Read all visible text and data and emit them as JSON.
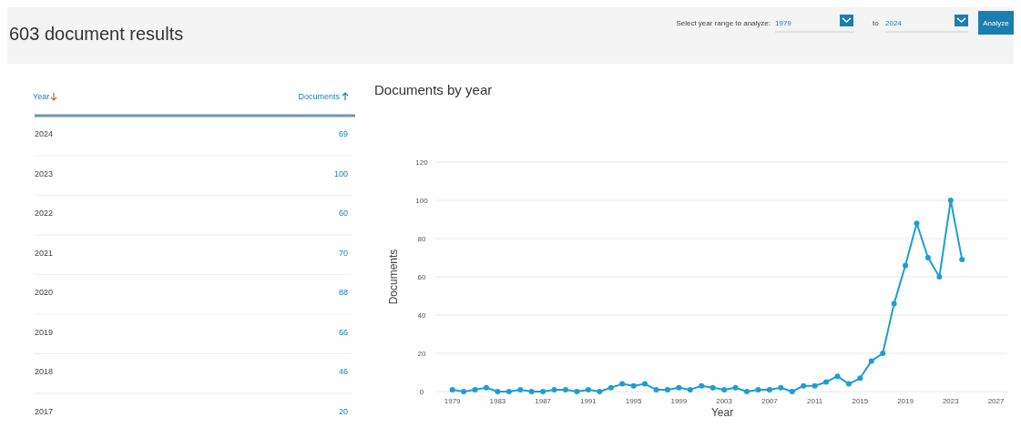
{
  "chart_data": {
    "type": "line",
    "title": "Documents by year",
    "xlabel": "Year",
    "ylabel": "Documents",
    "annotations": [
      "603 document results",
      "Select year range to analyze:",
      "1979",
      "to",
      "2024",
      "Analyze",
      "Year",
      "Documents",
      "2024",
      "69",
      "2023",
      "100",
      "2022",
      "60",
      "2021",
      "70",
      "2020",
      "88",
      "2019",
      "66",
      "2018",
      "46",
      "2017",
      "20"
    ],
    "x": [
      1979,
      1980,
      1981,
      1982,
      1983,
      1984,
      1985,
      1986,
      1987,
      1988,
      1989,
      1990,
      1991,
      1992,
      1993,
      1994,
      1995,
      1996,
      1997,
      1998,
      1999,
      2000,
      2001,
      2002,
      2003,
      2004,
      2005,
      2006,
      2007,
      2008,
      2009,
      2010,
      2011,
      2012,
      2013,
      2014,
      2015,
      2016,
      2017,
      2018,
      2019,
      2020,
      2021,
      2022,
      2023,
      2024
    ],
    "series": [
      {
        "color": "#1d9fd0",
        "values": [
          1,
          0,
          1,
          2,
          0,
          0,
          1,
          0,
          0,
          1,
          1,
          0,
          1,
          0,
          2,
          4,
          3,
          4,
          1,
          1,
          2,
          1,
          3,
          2,
          1,
          2,
          0,
          1,
          1,
          2,
          0,
          3,
          3,
          5,
          8,
          4,
          7,
          16,
          20,
          46,
          66,
          88,
          70,
          60,
          100,
          69
        ]
      }
    ],
    "xlim": [
      1977.5,
      2028
    ],
    "xticks": [
      1979,
      1983,
      1987,
      1991,
      1995,
      1999,
      2003,
      2007,
      2011,
      2015,
      2019,
      2023,
      2027
    ],
    "ylim": [
      0,
      120
    ],
    "yticks": [
      0,
      20,
      40,
      60,
      80,
      100,
      120
    ],
    "grid": "y",
    "marker": "circle",
    "line_style": "solid"
  }
}
